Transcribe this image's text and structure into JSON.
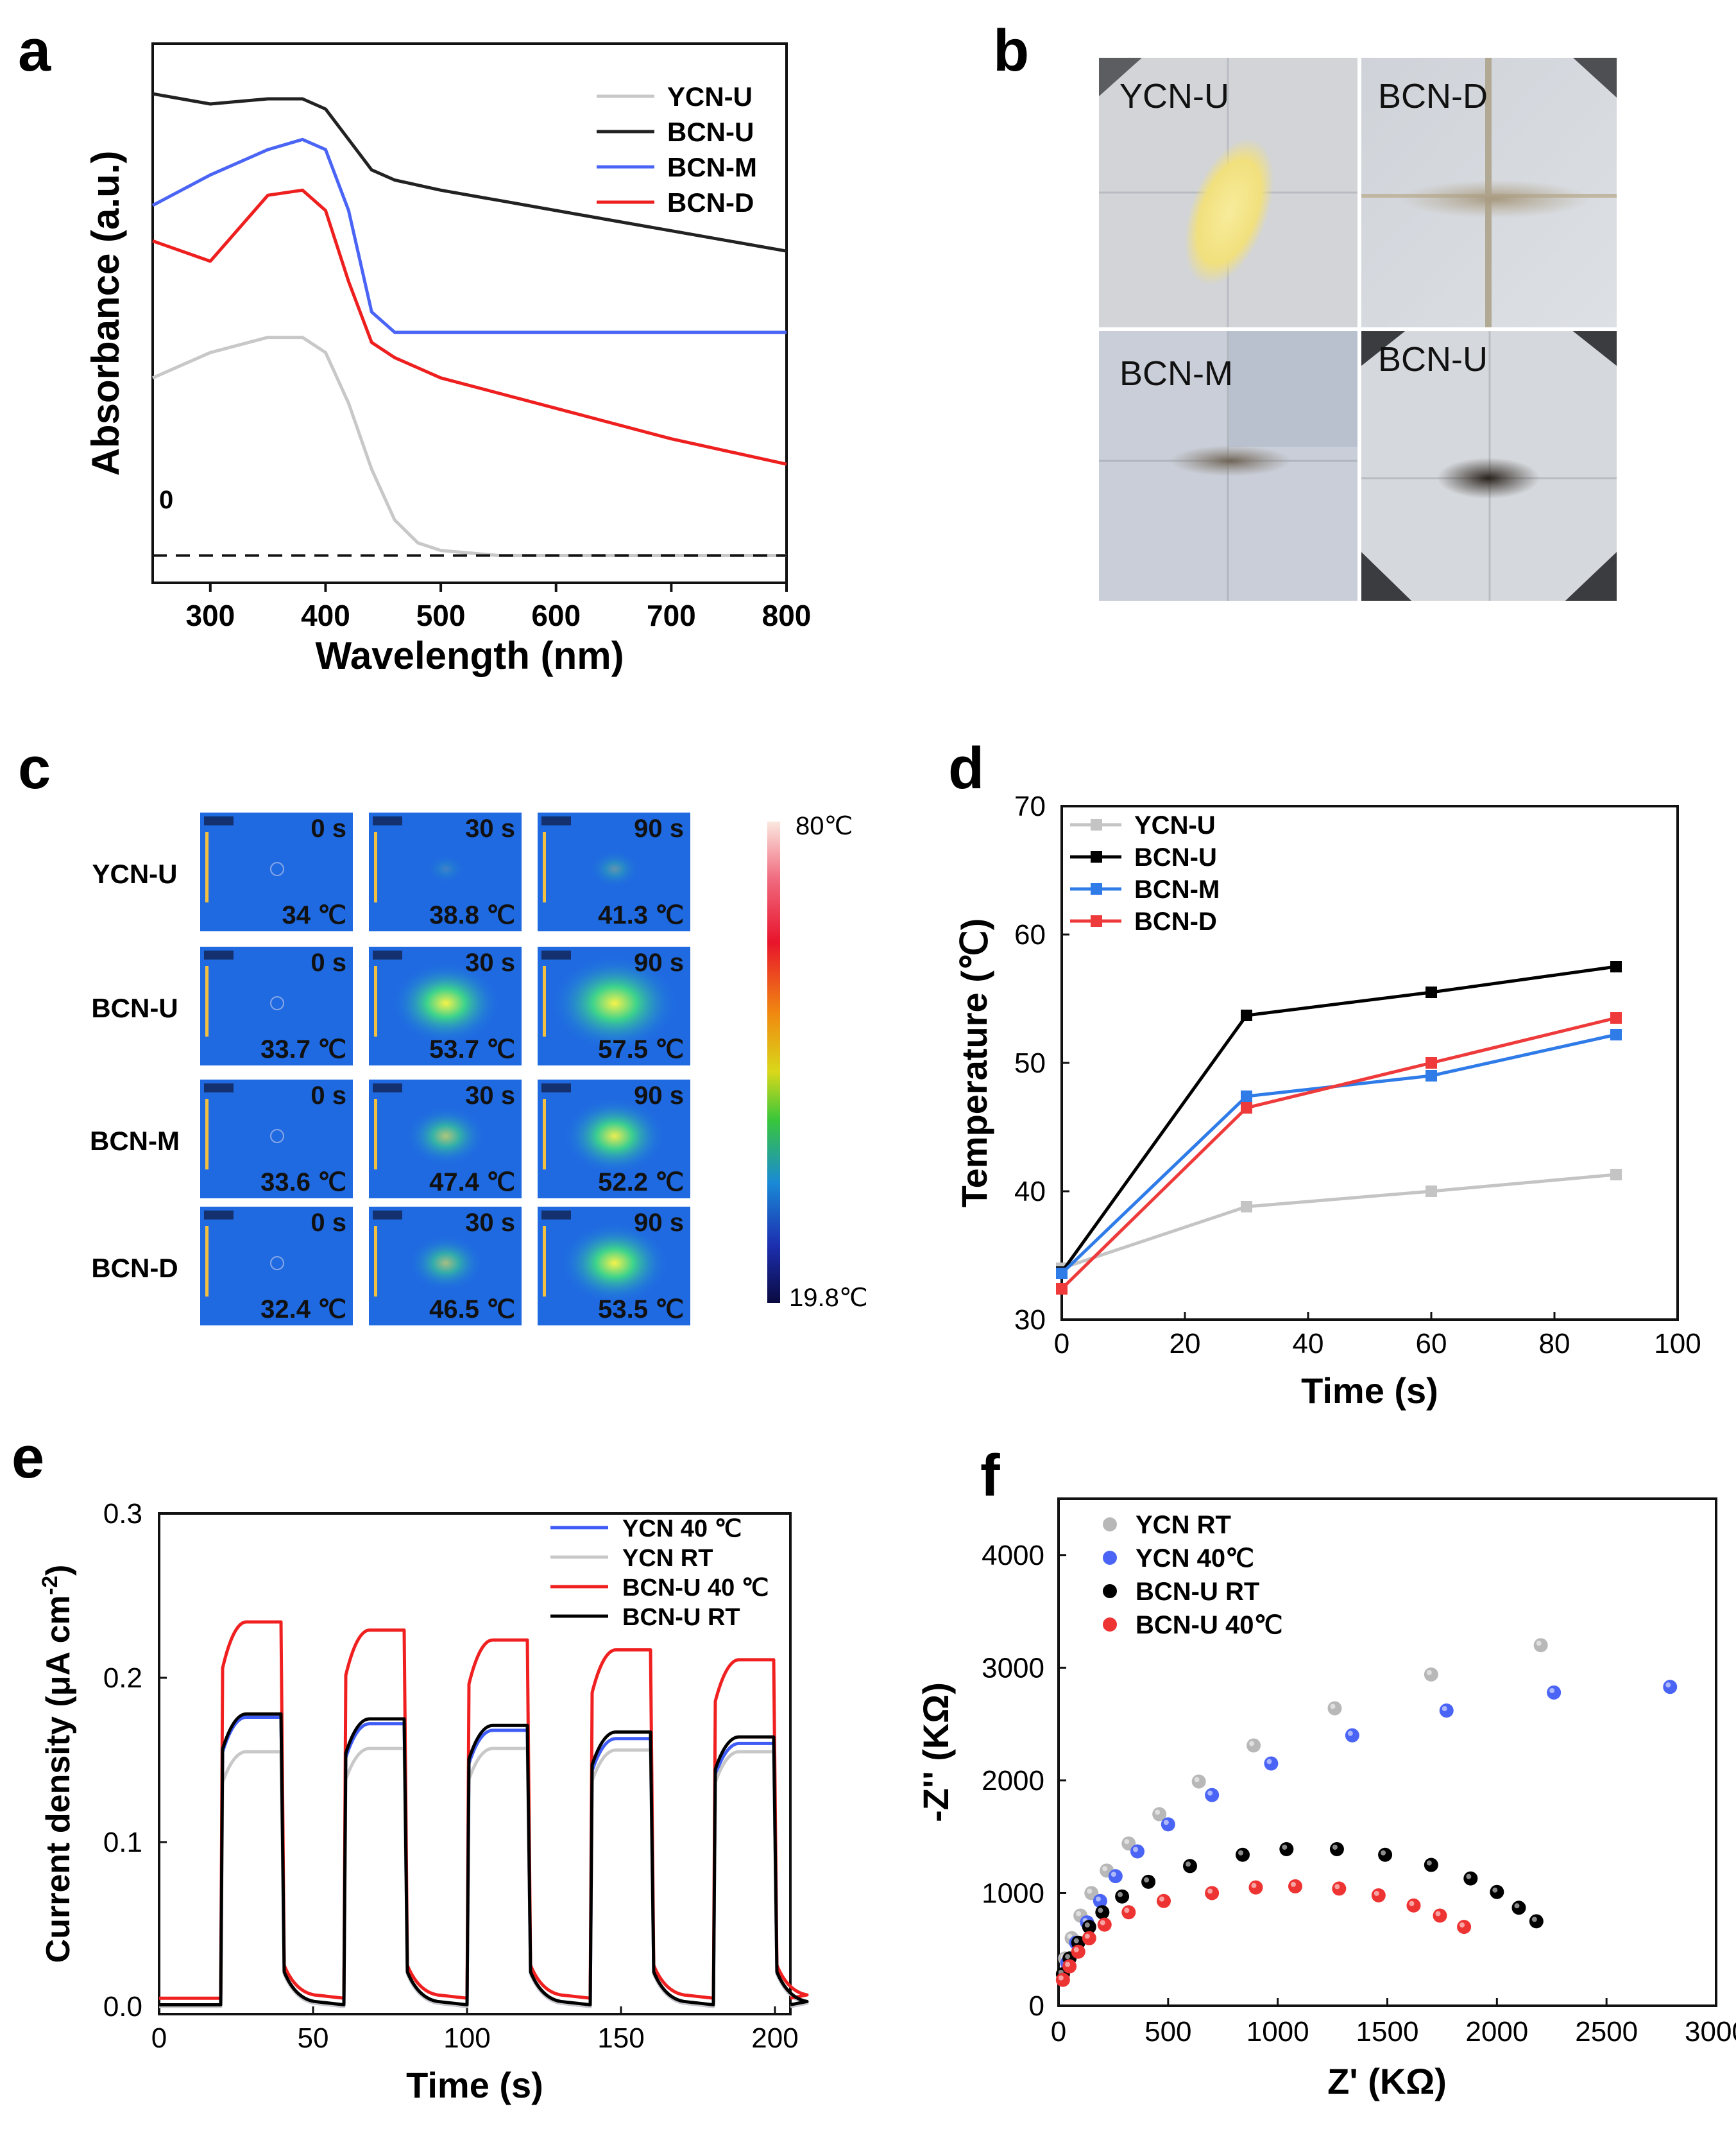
{
  "panels": {
    "a": "a",
    "b": "b",
    "c": "c",
    "d": "d",
    "e": "e",
    "f": "f"
  },
  "panel_a": {
    "xlabel": "Wavelength (nm)",
    "ylabel": "Absorbance (a.u.)",
    "zero_label": "0",
    "xticks": [
      "300",
      "400",
      "500",
      "600",
      "700",
      "800"
    ],
    "legend": [
      "YCN-U",
      "BCN-U",
      "BCN-M",
      "BCN-D"
    ]
  },
  "panel_b": {
    "tiles": [
      "YCN-U",
      "BCN-D",
      "BCN-M",
      "BCN-U"
    ]
  },
  "panel_c": {
    "rows": [
      "YCN-U",
      "BCN-U",
      "BCN-M",
      "BCN-D"
    ],
    "times": [
      "0 s",
      "30 s",
      "90 s"
    ],
    "temps": [
      [
        "34 ℃",
        "38.8 ℃",
        "41.3 ℃"
      ],
      [
        "33.7 ℃",
        "53.7 ℃",
        "57.5 ℃"
      ],
      [
        "33.6 ℃",
        "47.4 ℃",
        "52.2 ℃"
      ],
      [
        "32.4 ℃",
        "46.5 ℃",
        "53.5 ℃"
      ]
    ],
    "scale_max": "80℃",
    "scale_min": "19.8℃"
  },
  "chart_data": [
    {
      "type": "line",
      "panel": "a",
      "title": "",
      "xlabel": "Wavelength (nm)",
      "ylabel": "Absorbance (a.u.)",
      "xlim": [
        250,
        800
      ],
      "ylim": [
        -0.05,
        1.0
      ],
      "x": [
        250,
        300,
        350,
        380,
        400,
        420,
        440,
        460,
        480,
        500,
        550,
        600,
        700,
        800
      ],
      "series": [
        {
          "name": "YCN-U",
          "color": "#c8c8c8",
          "values": [
            0.35,
            0.4,
            0.43,
            0.43,
            0.4,
            0.3,
            0.17,
            0.07,
            0.025,
            0.01,
            0.0,
            0.0,
            0.0,
            0.0
          ]
        },
        {
          "name": "BCN-U",
          "color": "#222222",
          "values": [
            0.91,
            0.89,
            0.9,
            0.9,
            0.88,
            0.82,
            0.76,
            0.74,
            0.73,
            0.72,
            0.7,
            0.68,
            0.64,
            0.6
          ]
        },
        {
          "name": "BCN-M",
          "color": "#4a64f5",
          "values": [
            0.69,
            0.75,
            0.8,
            0.82,
            0.8,
            0.68,
            0.48,
            0.44,
            0.44,
            0.44,
            0.44,
            0.44,
            0.44,
            0.44
          ]
        },
        {
          "name": "BCN-D",
          "color": "#ee1f1f",
          "values": [
            0.62,
            0.58,
            0.71,
            0.72,
            0.68,
            0.54,
            0.42,
            0.39,
            0.37,
            0.35,
            0.32,
            0.29,
            0.23,
            0.18
          ]
        }
      ],
      "baseline": 0.0
    },
    {
      "type": "line",
      "panel": "d",
      "title": "",
      "xlabel": "Time (s)",
      "ylabel": "Temperature (℃)",
      "xlim": [
        0,
        100
      ],
      "ylim": [
        30,
        70
      ],
      "xticks": [
        0,
        20,
        40,
        60,
        80,
        100
      ],
      "yticks": [
        30,
        40,
        50,
        60,
        70
      ],
      "x": [
        0,
        30,
        60,
        90
      ],
      "series": [
        {
          "name": "YCN-U",
          "color": "#c4c4c4",
          "values": [
            34.0,
            38.8,
            40.0,
            41.3
          ]
        },
        {
          "name": "BCN-U",
          "color": "#000000",
          "values": [
            33.7,
            53.7,
            55.5,
            57.5
          ]
        },
        {
          "name": "BCN-M",
          "color": "#2f7be8",
          "values": [
            33.6,
            47.4,
            49.0,
            52.2
          ]
        },
        {
          "name": "BCN-D",
          "color": "#ee3a3a",
          "values": [
            32.4,
            46.5,
            50.0,
            53.5
          ]
        }
      ]
    },
    {
      "type": "line",
      "panel": "e",
      "title": "",
      "xlabel": "Time (s)",
      "ylabel": "Current density (μA cm-2)",
      "xlim": [
        0,
        205
      ],
      "ylim": [
        0,
        0.3
      ],
      "xticks": [
        0,
        50,
        100,
        150,
        200
      ],
      "yticks": [
        0.0,
        0.1,
        0.2,
        0.3
      ],
      "on_intervals": [
        [
          20,
          40
        ],
        [
          60,
          80
        ],
        [
          100,
          120
        ],
        [
          140,
          160
        ],
        [
          180,
          200
        ]
      ],
      "series": [
        {
          "name": "YCN 40 ℃",
          "color": "#3f5cf6",
          "plateaus": [
            0.176,
            0.172,
            0.168,
            0.163,
            0.16
          ],
          "dark": 0.0
        },
        {
          "name": "YCN RT",
          "color": "#c8c8c8",
          "plateaus": [
            0.155,
            0.157,
            0.157,
            0.156,
            0.155
          ],
          "dark": 0.0
        },
        {
          "name": "BCN-U 40 ℃",
          "color": "#f02020",
          "plateaus": [
            0.234,
            0.229,
            0.223,
            0.217,
            0.211
          ],
          "dark": 0.005
        },
        {
          "name": "BCN-U RT",
          "color": "#000000",
          "plateaus": [
            0.178,
            0.175,
            0.171,
            0.167,
            0.164
          ],
          "dark": 0.001
        }
      ]
    },
    {
      "type": "scatter",
      "panel": "f",
      "title": "",
      "xlabel": "Z' (KΩ)",
      "ylabel": "-Z'' (KΩ)",
      "xlim": [
        0,
        3000
      ],
      "ylim": [
        0,
        4500
      ],
      "xticks": [
        0,
        500,
        1000,
        1500,
        2000,
        2500,
        3000
      ],
      "yticks": [
        0,
        1000,
        2000,
        3000,
        4000
      ],
      "series": [
        {
          "name": "YCN RT",
          "color": "#b8b8b8",
          "points": [
            [
              30,
              420
            ],
            [
              60,
              600
            ],
            [
              100,
              800
            ],
            [
              150,
              1000
            ],
            [
              220,
              1200
            ],
            [
              320,
              1440
            ],
            [
              460,
              1700
            ],
            [
              640,
              1990
            ],
            [
              890,
              2310
            ],
            [
              1260,
              2640
            ],
            [
              1700,
              2940
            ],
            [
              2200,
              3200
            ]
          ]
        },
        {
          "name": "YCN 40℃",
          "color": "#4a64f5",
          "points": [
            [
              40,
              380
            ],
            [
              80,
              560
            ],
            [
              130,
              740
            ],
            [
              190,
              930
            ],
            [
              260,
              1150
            ],
            [
              360,
              1370
            ],
            [
              500,
              1610
            ],
            [
              700,
              1870
            ],
            [
              970,
              2150
            ],
            [
              1340,
              2400
            ],
            [
              1770,
              2620
            ],
            [
              2260,
              2780
            ],
            [
              2790,
              2830
            ]
          ]
        },
        {
          "name": "BCN-U RT",
          "color": "#000000",
          "points": [
            [
              20,
              280
            ],
            [
              50,
              420
            ],
            [
              90,
              560
            ],
            [
              140,
              700
            ],
            [
              200,
              830
            ],
            [
              290,
              970
            ],
            [
              410,
              1100
            ],
            [
              600,
              1240
            ],
            [
              840,
              1340
            ],
            [
              1040,
              1390
            ],
            [
              1270,
              1390
            ],
            [
              1490,
              1340
            ],
            [
              1700,
              1250
            ],
            [
              1880,
              1130
            ],
            [
              2000,
              1010
            ],
            [
              2100,
              870
            ],
            [
              2180,
              750
            ]
          ]
        },
        {
          "name": "BCN-U 40℃",
          "color": "#ee3333",
          "points": [
            [
              20,
              230
            ],
            [
              50,
              350
            ],
            [
              90,
              480
            ],
            [
              140,
              600
            ],
            [
              210,
              720
            ],
            [
              320,
              830
            ],
            [
              480,
              930
            ],
            [
              700,
              1000
            ],
            [
              900,
              1050
            ],
            [
              1080,
              1060
            ],
            [
              1280,
              1040
            ],
            [
              1460,
              980
            ],
            [
              1620,
              890
            ],
            [
              1740,
              800
            ],
            [
              1850,
              700
            ]
          ]
        }
      ]
    }
  ]
}
